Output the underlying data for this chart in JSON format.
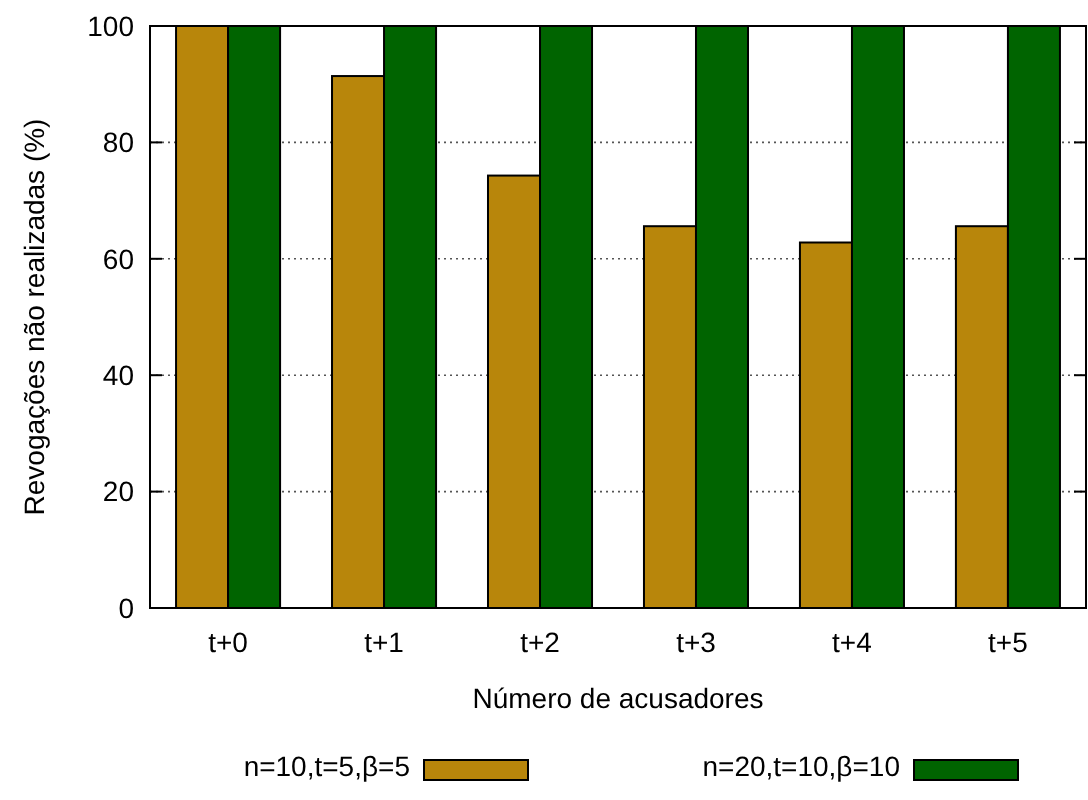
{
  "chart_data": {
    "type": "bar",
    "xlabel": "Número de acusadores",
    "ylabel": "Revogações não realizadas (%)",
    "categories": [
      "t+0",
      "t+1",
      "t+2",
      "t+3",
      "t+4",
      "t+5"
    ],
    "series": [
      {
        "name": "n=10,t=5,β=5",
        "color": "#b8860b",
        "values": [
          100,
          91.4,
          74.3,
          65.6,
          62.8,
          65.6
        ]
      },
      {
        "name": "n=20,t=10,β=10",
        "color": "#006400",
        "values": [
          100,
          100,
          100,
          100,
          100,
          100
        ]
      }
    ],
    "ylim": [
      0,
      100
    ],
    "yticks": [
      0,
      20,
      40,
      60,
      80,
      100
    ],
    "grid": "y",
    "legend": "bottom"
  }
}
